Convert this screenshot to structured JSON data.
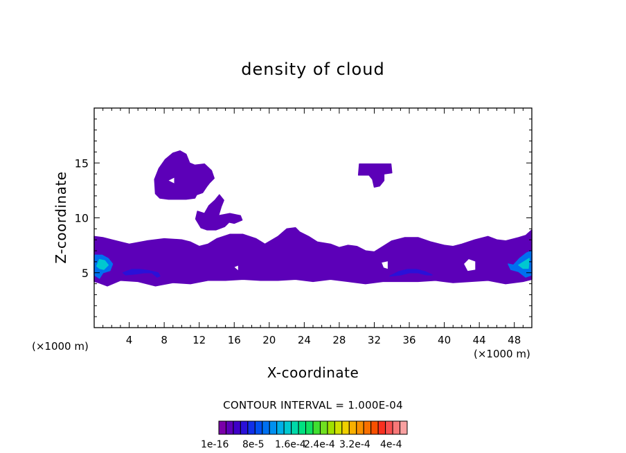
{
  "chart_data": {
    "type": "heatmap",
    "title": "density of cloud",
    "xlabel": "X-coordinate",
    "ylabel": "Z-coordinate",
    "x_unit": "(×1000 m)",
    "z_unit": "(×1000 m)",
    "xlim": [
      0,
      50
    ],
    "ylim": [
      0,
      20
    ],
    "x_ticks": [
      4,
      8,
      12,
      16,
      20,
      24,
      28,
      32,
      36,
      40,
      44,
      48
    ],
    "y_ticks": [
      5,
      10,
      15
    ],
    "contour_interval_text": "CONTOUR INTERVAL = 1.000E-04",
    "colorbar": {
      "labels": [
        "1e-16",
        "8e-5",
        "1.6e-4",
        "2.4e-4",
        "3.2e-4",
        "4e-4"
      ],
      "colors": [
        "#7a00a8",
        "#5c00b8",
        "#3f00c8",
        "#2a10d8",
        "#1030e8",
        "#0050f0",
        "#0070f0",
        "#0090f0",
        "#00b0e8",
        "#00c8d0",
        "#00d8a8",
        "#00e080",
        "#10e060",
        "#40e030",
        "#70e020",
        "#a0e000",
        "#d0e000",
        "#f0d000",
        "#f8b000",
        "#f89000",
        "#f87000",
        "#f85000",
        "#f83020",
        "#f85050",
        "#f87878",
        "#f8a0a0"
      ]
    },
    "cloud_regions": [
      {
        "level": 1,
        "outline": [
          [
            0,
            4.2
          ],
          [
            0,
            8.3
          ],
          [
            1,
            8.2
          ],
          [
            2,
            8.0
          ],
          [
            3,
            7.8
          ],
          [
            4,
            7.6
          ],
          [
            6,
            7.9
          ],
          [
            8,
            8.1
          ],
          [
            10,
            8.0
          ],
          [
            11,
            7.8
          ],
          [
            12,
            7.4
          ],
          [
            13,
            7.6
          ],
          [
            14,
            8.1
          ],
          [
            15.5,
            8.5
          ],
          [
            17,
            8.5
          ],
          [
            18.5,
            8.1
          ],
          [
            19.5,
            7.6
          ],
          [
            21,
            8.3
          ],
          [
            22,
            9.0
          ],
          [
            23,
            9.1
          ],
          [
            23.5,
            8.7
          ],
          [
            24.5,
            8.3
          ],
          [
            25.5,
            7.8
          ],
          [
            27,
            7.6
          ],
          [
            28,
            7.3
          ],
          [
            29,
            7.5
          ],
          [
            30,
            7.4
          ],
          [
            31,
            7.0
          ],
          [
            32,
            6.9
          ],
          [
            33,
            7.4
          ],
          [
            34,
            7.9
          ],
          [
            35.5,
            8.2
          ],
          [
            37,
            8.2
          ],
          [
            38.5,
            7.8
          ],
          [
            40,
            7.5
          ],
          [
            41,
            7.4
          ],
          [
            42,
            7.6
          ],
          [
            43.5,
            8.0
          ],
          [
            45,
            8.3
          ],
          [
            46,
            8.0
          ],
          [
            47,
            7.9
          ],
          [
            48.5,
            8.2
          ],
          [
            49.3,
            8.4
          ],
          [
            50,
            8.9
          ],
          [
            50,
            4.4
          ],
          [
            49,
            4.2
          ],
          [
            47,
            4.0
          ],
          [
            45,
            4.3
          ],
          [
            43,
            4.2
          ],
          [
            41,
            4.1
          ],
          [
            39,
            4.3
          ],
          [
            37,
            4.2
          ],
          [
            35,
            4.2
          ],
          [
            33,
            4.2
          ],
          [
            31,
            4.0
          ],
          [
            29,
            4.2
          ],
          [
            27,
            4.4
          ],
          [
            25,
            4.2
          ],
          [
            23,
            4.4
          ],
          [
            21,
            4.3
          ],
          [
            19,
            4.3
          ],
          [
            17,
            4.4
          ],
          [
            15,
            4.3
          ],
          [
            13,
            4.3
          ],
          [
            11,
            4.0
          ],
          [
            9,
            4.1
          ],
          [
            7,
            3.8
          ],
          [
            5,
            4.2
          ],
          [
            3,
            4.3
          ],
          [
            1.5,
            3.8
          ],
          [
            0.5,
            4.1
          ]
        ]
      },
      {
        "level": 1,
        "outline": [
          [
            7,
            12.2
          ],
          [
            6.9,
            13.5
          ],
          [
            7.4,
            14.5
          ],
          [
            8.1,
            15.3
          ],
          [
            9,
            15.9
          ],
          [
            9.8,
            16.1
          ],
          [
            10.5,
            15.8
          ],
          [
            10.9,
            15.0
          ],
          [
            11.5,
            14.8
          ],
          [
            12.6,
            14.9
          ],
          [
            13.4,
            14.3
          ],
          [
            13.7,
            13.6
          ],
          [
            13.2,
            13.2
          ],
          [
            12.9,
            12.9
          ],
          [
            12.4,
            12.3
          ],
          [
            11.7,
            12.1
          ],
          [
            11.5,
            11.8
          ],
          [
            10.5,
            11.7
          ],
          [
            9.5,
            11.7
          ],
          [
            8.5,
            11.7
          ],
          [
            7.5,
            11.8
          ]
        ]
      },
      {
        "level": 1,
        "outline": [
          [
            11.6,
            9.9
          ],
          [
            11.8,
            10.6
          ],
          [
            12.6,
            10.4
          ],
          [
            13.1,
            11.1
          ],
          [
            13.8,
            11.6
          ],
          [
            14.3,
            12.1
          ],
          [
            14.8,
            11.6
          ],
          [
            14.5,
            11.0
          ],
          [
            14.2,
            10.2
          ],
          [
            15.5,
            10.4
          ],
          [
            16.7,
            10.2
          ],
          [
            16.9,
            9.8
          ],
          [
            16,
            9.5
          ],
          [
            15.4,
            9.6
          ],
          [
            14.9,
            9.2
          ],
          [
            13.9,
            8.9
          ],
          [
            12.9,
            8.9
          ],
          [
            12.2,
            9.1
          ]
        ]
      },
      {
        "level": 1,
        "outline": [
          [
            30.3,
            14.9
          ],
          [
            33.9,
            14.9
          ],
          [
            34,
            14.1
          ],
          [
            33.1,
            14.0
          ],
          [
            33.1,
            13.4
          ],
          [
            32.6,
            12.9
          ],
          [
            32,
            12.8
          ],
          [
            31.8,
            13.5
          ],
          [
            31.4,
            13.9
          ],
          [
            30.2,
            13.9
          ]
        ]
      },
      {
        "level": 3,
        "outline": [
          [
            3.3,
            5.0
          ],
          [
            4.3,
            5.3
          ],
          [
            5.2,
            5.3
          ],
          [
            6.2,
            5.2
          ],
          [
            7.3,
            5.0
          ],
          [
            7.5,
            4.7
          ],
          [
            7.2,
            4.6
          ],
          [
            6.6,
            5.0
          ],
          [
            5.7,
            5.0
          ],
          [
            4.9,
            4.9
          ],
          [
            3.6,
            4.8
          ]
        ]
      },
      {
        "level": 3,
        "outline": [
          [
            33.8,
            4.7
          ],
          [
            34.8,
            5.1
          ],
          [
            35.8,
            5.3
          ],
          [
            36.8,
            5.3
          ],
          [
            37.8,
            5.1
          ],
          [
            38.6,
            4.8
          ],
          [
            38,
            4.8
          ],
          [
            37,
            5.0
          ],
          [
            36,
            5.0
          ],
          [
            35,
            4.8
          ]
        ]
      },
      {
        "level": 6,
        "outline": [
          [
            0,
            4.8
          ],
          [
            0,
            6.6
          ],
          [
            0.4,
            6.6
          ],
          [
            0.9,
            6.6
          ],
          [
            1.6,
            6.3
          ],
          [
            2.1,
            5.8
          ],
          [
            1.8,
            5.2
          ],
          [
            1.0,
            5.0
          ],
          [
            0.6,
            4.5
          ]
        ]
      },
      {
        "level": 6,
        "outline": [
          [
            50,
            4.8
          ],
          [
            50,
            7.0
          ],
          [
            49.4,
            6.8
          ],
          [
            48.6,
            6.3
          ],
          [
            47.9,
            5.7
          ],
          [
            47.3,
            5.8
          ],
          [
            47.6,
            5.3
          ],
          [
            48.5,
            5.1
          ],
          [
            49.3,
            4.6
          ]
        ]
      },
      {
        "level": 9,
        "outline": [
          [
            0.3,
            5.6
          ],
          [
            0.6,
            6.2
          ],
          [
            1.2,
            6.1
          ],
          [
            1.6,
            5.7
          ],
          [
            1.1,
            5.3
          ],
          [
            0.6,
            5.4
          ]
        ]
      },
      {
        "level": 9,
        "outline": [
          [
            49.6,
            5.4
          ],
          [
            49.7,
            6.3
          ],
          [
            49.1,
            6.0
          ],
          [
            48.5,
            5.7
          ],
          [
            49.0,
            5.4
          ]
        ]
      }
    ],
    "holes": [
      {
        "outline": [
          [
            8.6,
            13.4
          ],
          [
            9.1,
            13.6
          ],
          [
            9.1,
            13.2
          ]
        ]
      },
      {
        "outline": [
          [
            32.9,
            5.9
          ],
          [
            33.5,
            6.0
          ],
          [
            33.5,
            5.4
          ],
          [
            33.1,
            5.5
          ]
        ]
      },
      {
        "outline": [
          [
            42.3,
            5.8
          ],
          [
            42.8,
            6.2
          ],
          [
            43.5,
            6.0
          ],
          [
            43.5,
            5.3
          ],
          [
            42.7,
            5.2
          ]
        ]
      },
      {
        "outline": [
          [
            16.1,
            5.5
          ],
          [
            16.4,
            5.6
          ],
          [
            16.4,
            5.3
          ]
        ]
      }
    ]
  }
}
